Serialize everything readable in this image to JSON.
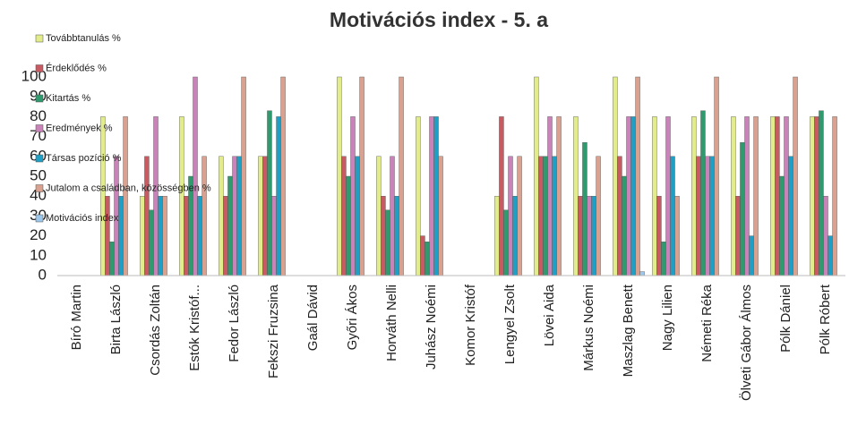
{
  "chart_data": {
    "type": "bar",
    "title": "Motivációs index - 5. a",
    "categories": [
      "Bíró Martin",
      "Birta László",
      "Csordás Zoltán",
      "Estók Kristóf...",
      "Fedor László",
      "Fekszi Fruzsina",
      "Gaál Dávid",
      "Győri Ákos",
      "Horváth Nelli",
      "Juhász Noémi",
      "Komor Kristóf",
      "Lengyel Zsolt",
      "Lövei Aida",
      "Márkus Noémi",
      "Maszlag Benett",
      "Nagy Lilien",
      "Németi Réka",
      "Ölveti Gábor Álmos",
      "Pólk Dániel",
      "Pólk Róbert"
    ],
    "series": [
      {
        "name": "Továbbtanulás %",
        "color": "#e2ec8a",
        "values": [
          null,
          80,
          40,
          80,
          60,
          60,
          null,
          100,
          60,
          80,
          null,
          40,
          100,
          80,
          100,
          80,
          80,
          80,
          80,
          80
        ]
      },
      {
        "name": "Érdeklődés %",
        "color": "#c85a62",
        "values": [
          null,
          40,
          60,
          40,
          40,
          60,
          null,
          60,
          40,
          20,
          null,
          80,
          60,
          40,
          60,
          40,
          60,
          40,
          80,
          80
        ]
      },
      {
        "name": "Kitartás %",
        "color": "#2e9a6e",
        "values": [
          null,
          17,
          33,
          50,
          50,
          83,
          null,
          50,
          33,
          17,
          null,
          33,
          60,
          67,
          50,
          17,
          83,
          67,
          50,
          83
        ]
      },
      {
        "name": "Eredmények %",
        "color": "#c983b8",
        "values": [
          null,
          60,
          80,
          100,
          60,
          40,
          null,
          80,
          60,
          80,
          null,
          60,
          80,
          40,
          80,
          80,
          60,
          80,
          80,
          40
        ]
      },
      {
        "name": "Társas pozíció %",
        "color": "#1f9fc4",
        "values": [
          null,
          40,
          40,
          40,
          60,
          80,
          null,
          60,
          40,
          80,
          null,
          40,
          60,
          40,
          80,
          60,
          60,
          20,
          60,
          20
        ]
      },
      {
        "name": "Jutalom a családban, közösségben %",
        "color": "#d9a290",
        "values": [
          null,
          80,
          40,
          60,
          100,
          100,
          null,
          100,
          100,
          60,
          null,
          60,
          80,
          60,
          100,
          40,
          100,
          80,
          100,
          80
        ]
      },
      {
        "name": "Motivációs index",
        "color": "#9cc6ea",
        "values": [
          null,
          0,
          0,
          0,
          0,
          0,
          null,
          0,
          0,
          0,
          null,
          0,
          0,
          0,
          2,
          0,
          0,
          0,
          0,
          0
        ]
      }
    ],
    "ylim": [
      0,
      100
    ],
    "yticks": [
      0,
      10,
      20,
      30,
      40,
      50,
      60,
      70,
      80,
      90,
      100
    ],
    "grid": false
  }
}
